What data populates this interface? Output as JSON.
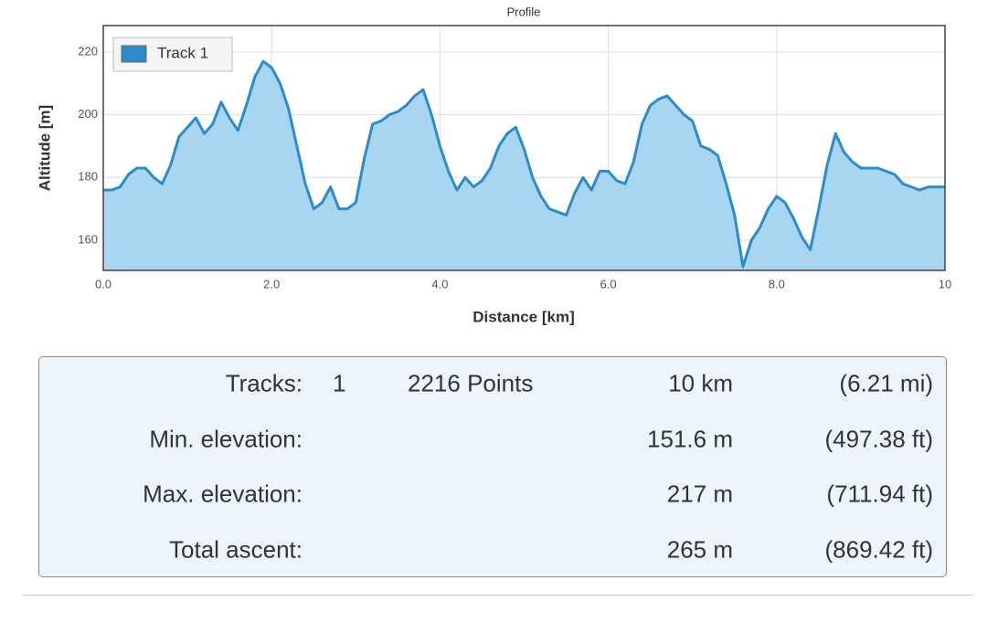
{
  "chart_data": {
    "type": "area",
    "title": "Profile",
    "x_label": "Distance [km]",
    "y_label": "Altitude [m]",
    "x": [
      0,
      0.1,
      0.2,
      0.3,
      0.4,
      0.5,
      0.6,
      0.7,
      0.8,
      0.9,
      1,
      1.1,
      1.2,
      1.3,
      1.4,
      1.5,
      1.6,
      1.7,
      1.8,
      1.9,
      2,
      2.1,
      2.2,
      2.3,
      2.4,
      2.5,
      2.6,
      2.7,
      2.8,
      2.9,
      3,
      3.1,
      3.2,
      3.3,
      3.4,
      3.5,
      3.6,
      3.7,
      3.8,
      3.9,
      4,
      4.1,
      4.2,
      4.3,
      4.4,
      4.5,
      4.6,
      4.7,
      4.8,
      4.9,
      5,
      5.1,
      5.2,
      5.3,
      5.4,
      5.5,
      5.6,
      5.7,
      5.8,
      5.9,
      6,
      6.1,
      6.2,
      6.3,
      6.4,
      6.5,
      6.6,
      6.7,
      6.8,
      6.9,
      7,
      7.1,
      7.2,
      7.3,
      7.4,
      7.5,
      7.6,
      7.7,
      7.8,
      7.9,
      8,
      8.1,
      8.2,
      8.3,
      8.4,
      8.5,
      8.6,
      8.7,
      8.8,
      8.9,
      9,
      9.1,
      9.2,
      9.3,
      9.4,
      9.5,
      9.6,
      9.7,
      9.8,
      9.9,
      10
    ],
    "series": [
      {
        "name": "Track 1",
        "color": "#2b8ccc",
        "fill": "#a8d6f1",
        "values": [
          176,
          176,
          177,
          181,
          183,
          183,
          180,
          178,
          184,
          193,
          196,
          199,
          194,
          197,
          204,
          199,
          195,
          203,
          212,
          217,
          215,
          210,
          202,
          190,
          178,
          170,
          172,
          177,
          170,
          170,
          172,
          186,
          197,
          198,
          200,
          201,
          203,
          206,
          208,
          200,
          190,
          182,
          176,
          180,
          177,
          179,
          183,
          190,
          194,
          196,
          189,
          180,
          174,
          170,
          169,
          168,
          175,
          180,
          176,
          182,
          182,
          179,
          178,
          185,
          197,
          203,
          205,
          206,
          203,
          200,
          198,
          190,
          189,
          187,
          178,
          168,
          151.6,
          160,
          164,
          170,
          174,
          172,
          167,
          161,
          157,
          170,
          184,
          194,
          188,
          185,
          183,
          183,
          183,
          182,
          181,
          178,
          177,
          176,
          177,
          177,
          177
        ]
      }
    ],
    "xlim": [
      0,
      10
    ],
    "ylim": [
      150.4,
      228.4
    ],
    "xticks": [
      {
        "value": 0,
        "label": "0.0"
      },
      {
        "value": 2,
        "label": "2.0"
      },
      {
        "value": 4,
        "label": "4.0"
      },
      {
        "value": 6,
        "label": "6.0"
      },
      {
        "value": 8,
        "label": "8.0"
      },
      10
    ],
    "yticks": [
      160,
      180,
      200,
      220
    ],
    "grid": true,
    "legend": "top-left"
  },
  "stats": {
    "rows": [
      {
        "label": "Tracks:",
        "count": "1",
        "points": "2216 Points",
        "metric": "10 km",
        "imperial": "(6.21 mi)"
      },
      {
        "label": "Min. elevation:",
        "metric": "151.6 m",
        "imperial": "(497.38 ft)"
      },
      {
        "label": "Max. elevation:",
        "metric": "217 m",
        "imperial": "(711.94 ft)"
      },
      {
        "label": "Total ascent:",
        "metric": "265 m",
        "imperial": "(869.42 ft)"
      }
    ]
  }
}
